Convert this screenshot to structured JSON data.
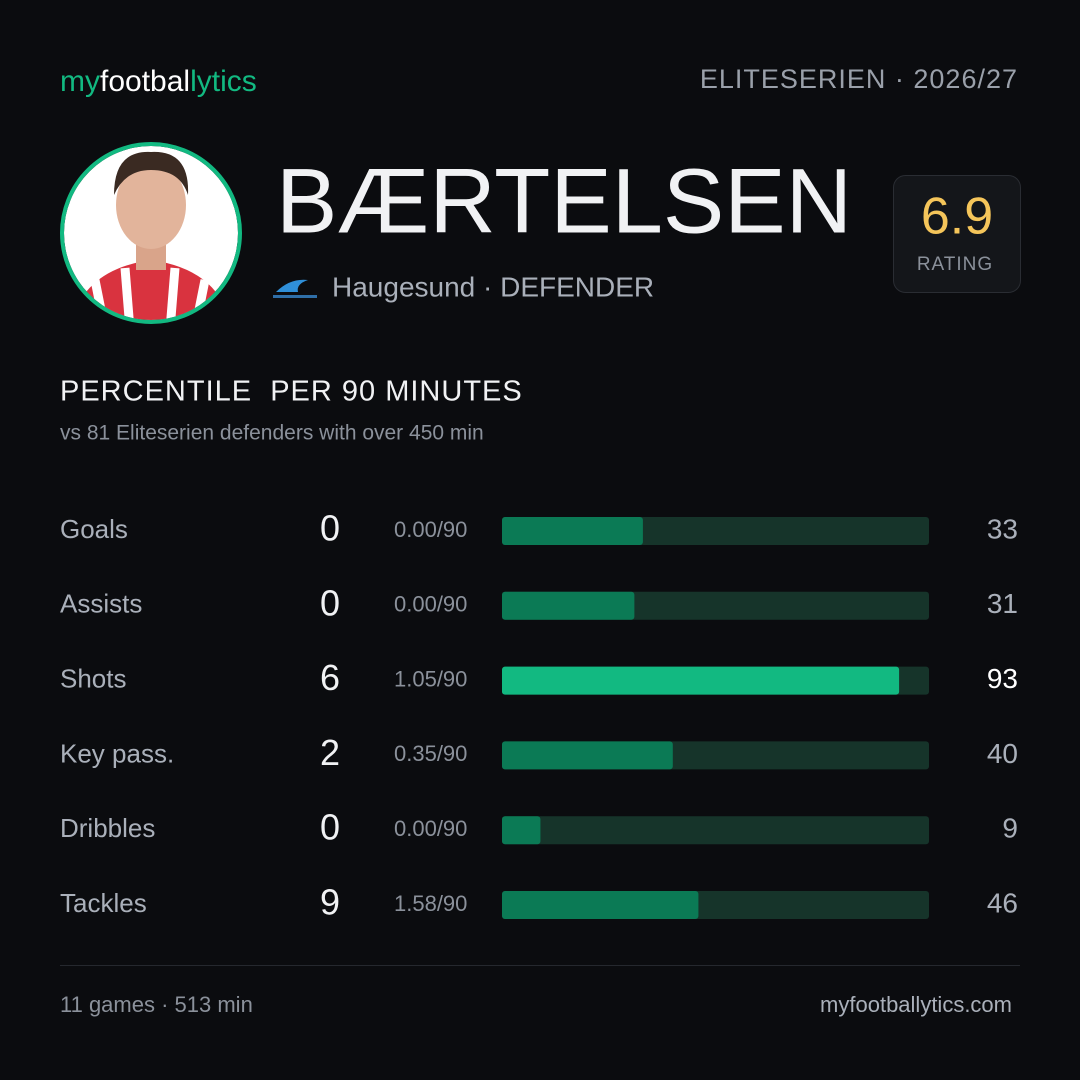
{
  "header": {
    "brand": [
      "my",
      "footbal",
      "lytics"
    ],
    "competition": "ELITESERIEN · 2026/27"
  },
  "player": {
    "name": "BÆRTELSEN",
    "club_line": "Haugesund · DEFENDER",
    "rating": "6.9",
    "rating_label": "RATING"
  },
  "section": {
    "title": "PERCENTILE  PER 90 MINUTES",
    "subtitle": "vs 81 Eliteserien defenders with over 450 min"
  },
  "percentile_scale": [
    0,
    100
  ],
  "stats": [
    {
      "label": "Goals",
      "total": 0,
      "per90": "0.00/90",
      "percentile": 33,
      "color": "#0b7a55"
    },
    {
      "label": "Assists",
      "total": 0,
      "per90": "0.00/90",
      "percentile": 31,
      "color": "#0b7a55"
    },
    {
      "label": "Shots",
      "total": 6,
      "per90": "1.05/90",
      "percentile": 93,
      "color": "#12b981"
    },
    {
      "label": "Key pass.",
      "total": 2,
      "per90": "0.35/90",
      "percentile": 40,
      "color": "#0b7a55"
    },
    {
      "label": "Dribbles",
      "total": 0,
      "per90": "0.00/90",
      "percentile": 9,
      "color": "#0b7a55"
    },
    {
      "label": "Tackles",
      "total": 9,
      "per90": "1.58/90",
      "percentile": 46,
      "color": "#0b7a55"
    }
  ],
  "footer": {
    "summary": "11 games · 513 min",
    "site": "myfootballytics.com"
  }
}
